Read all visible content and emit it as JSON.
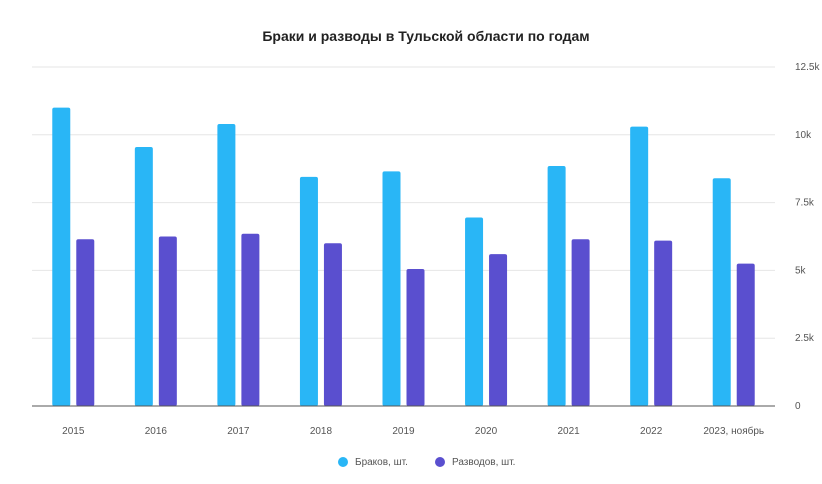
{
  "chart_data": {
    "type": "bar",
    "title": "Браки и разводы в Тульской области по годам",
    "categories": [
      "2015",
      "2016",
      "2017",
      "2018",
      "2019",
      "2020",
      "2021",
      "2022",
      "2023, ноябрь"
    ],
    "series": [
      {
        "name": "Браков, шт.",
        "color": "#29b6f6",
        "values": [
          11000,
          9550,
          10400,
          8450,
          8650,
          6950,
          8850,
          10300,
          8400
        ]
      },
      {
        "name": "Разводов, шт.",
        "color": "#5a4fcf",
        "values": [
          6150,
          6250,
          6350,
          6000,
          5050,
          5600,
          6150,
          6100,
          5250
        ]
      }
    ],
    "ylim": [
      0,
      12500
    ],
    "y_ticks": [
      0,
      2500,
      5000,
      7500,
      10000,
      12500
    ],
    "y_tick_labels": [
      "0",
      "2.5k",
      "5k",
      "7.5k",
      "10k",
      "12.5k"
    ],
    "y_axis_side": "right",
    "grid": true,
    "legend_placement": "bottom-center",
    "xlabel": "",
    "ylabel": ""
  }
}
